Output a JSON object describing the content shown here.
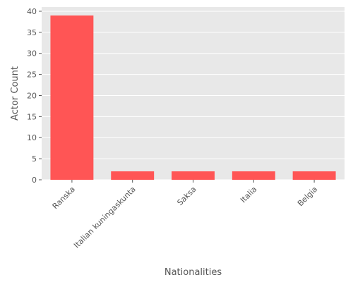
{
  "chart_data": {
    "type": "bar",
    "title": "",
    "xlabel": "Nationalities",
    "ylabel": "Actor Count",
    "categories": [
      "Ranska",
      "Italian kuningaskunta",
      "Saksa",
      "Italia",
      "Belgia"
    ],
    "values": [
      39,
      2,
      2,
      2,
      2
    ],
    "ylim": [
      0,
      41
    ],
    "yticks": [
      0,
      5,
      10,
      15,
      20,
      25,
      30,
      35,
      40
    ],
    "grid": true,
    "bar_color": "#ff5555",
    "background_color": "#e8e8e8",
    "grid_color": "#ffffff"
  }
}
